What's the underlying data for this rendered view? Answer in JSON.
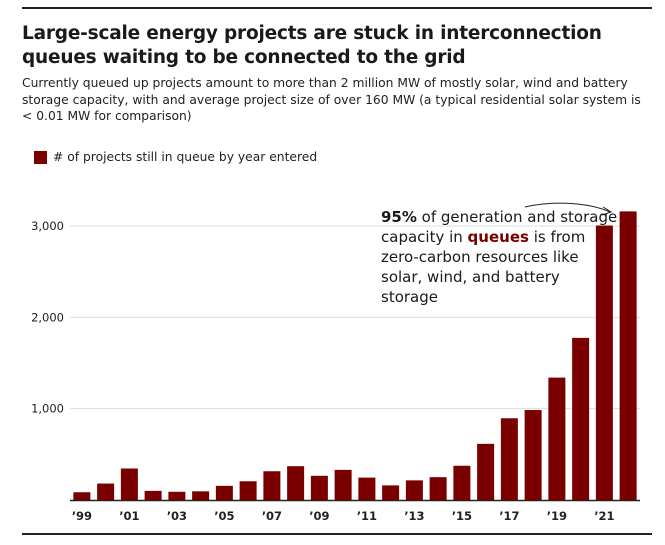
{
  "header": {
    "title": "Large-scale energy projects are stuck in interconnection queues waiting to be connected to the grid",
    "subtitle": "Currently queued up projects amount to more than 2 million MW of mostly solar, wind and battery storage capacity, with and average project size of over 160 MW (a typical residential solar system is < 0.01 MW for comparison)"
  },
  "annotation": {
    "pct": "95%",
    "text1": " of generation and storage capacity in ",
    "highlight": "queues",
    "text2": " is from zero-carbon resources like solar, wind, and battery storage"
  },
  "colors": {
    "bar": "#7a0000",
    "grid": "#dddddd",
    "axis": "#222222"
  },
  "chart_data": {
    "type": "bar",
    "title": "Large-scale energy projects are stuck in interconnection queues waiting to be connected to the grid",
    "legend": "# of projects still in queue by year entered",
    "xlabel": "",
    "ylabel": "",
    "ylim": [
      0,
      3300
    ],
    "yticks": [
      1000,
      2000,
      3000
    ],
    "ytick_labels": [
      "1,000",
      "2,000",
      "3,000"
    ],
    "categories": [
      "1999",
      "2000",
      "2001",
      "2002",
      "2003",
      "2004",
      "2005",
      "2006",
      "2007",
      "2008",
      "2009",
      "2010",
      "2011",
      "2012",
      "2013",
      "2014",
      "2015",
      "2016",
      "2017",
      "2018",
      "2019",
      "2020",
      "2021",
      "2022"
    ],
    "xtick_labels": [
      "’99",
      "",
      "’01",
      "",
      "’03",
      "",
      "’05",
      "",
      "’07",
      "",
      "’09",
      "",
      "’11",
      "",
      "’13",
      "",
      "’15",
      "",
      "’17",
      "",
      "’19",
      "",
      "’21",
      ""
    ],
    "values": [
      85,
      180,
      345,
      100,
      90,
      95,
      155,
      205,
      315,
      370,
      265,
      330,
      245,
      160,
      215,
      250,
      375,
      615,
      895,
      985,
      1340,
      1775,
      3005,
      3160
    ]
  }
}
